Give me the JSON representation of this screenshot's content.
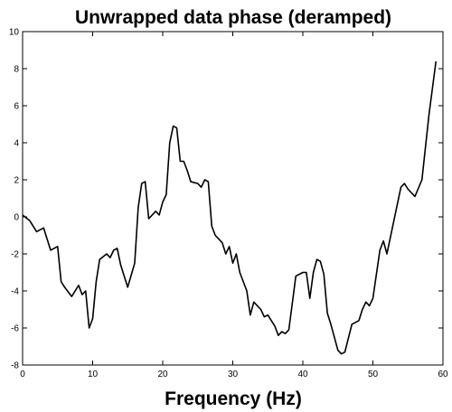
{
  "chart_data": {
    "type": "line",
    "title": "Unwrapped data phase (deramped)",
    "x_label": "Frequency (Hz)",
    "x": [
      0,
      1,
      2,
      3,
      4,
      5,
      5.5,
      6,
      7,
      8,
      8.5,
      9,
      9.5,
      10,
      10.5,
      11,
      12,
      12.5,
      13,
      13.5,
      14,
      15,
      16,
      16.5,
      17,
      17.5,
      18,
      19,
      19.5,
      20,
      20.5,
      21,
      21.5,
      22,
      22.5,
      23,
      23.5,
      24,
      25,
      25.5,
      26,
      26.5,
      27,
      27.5,
      28,
      28.5,
      29,
      29.5,
      30,
      30.5,
      31,
      31.5,
      32,
      32.5,
      33,
      34,
      34.5,
      35,
      36,
      36.5,
      37,
      37.5,
      38,
      39,
      40,
      40.5,
      41,
      41.5,
      42,
      42.5,
      43,
      43.5,
      44,
      45,
      45.5,
      46,
      47,
      48,
      48.5,
      49,
      49.5,
      50,
      51,
      51.5,
      52,
      53,
      54,
      54.5,
      55,
      56,
      57,
      58,
      59
    ],
    "series": [
      {
        "color": "#000000",
        "values": [
          0.1,
          -0.2,
          -0.8,
          -0.6,
          -1.8,
          -1.6,
          -3.5,
          -3.8,
          -4.3,
          -3.7,
          -4.2,
          -4.0,
          -6.0,
          -5.5,
          -3.5,
          -2.3,
          -2.0,
          -2.2,
          -1.8,
          -1.7,
          -2.6,
          -3.8,
          -2.5,
          0.5,
          1.8,
          1.9,
          -0.1,
          0.3,
          0.1,
          0.8,
          1.2,
          4.0,
          4.9,
          4.8,
          3.0,
          3.0,
          2.5,
          1.9,
          1.8,
          1.6,
          2.0,
          1.9,
          -0.5,
          -1.0,
          -1.2,
          -1.4,
          -2.0,
          -1.6,
          -2.5,
          -2.0,
          -3.0,
          -3.5,
          -4.0,
          -5.3,
          -4.6,
          -5.0,
          -5.4,
          -5.3,
          -5.9,
          -6.4,
          -6.2,
          -6.3,
          -6.1,
          -3.2,
          -3.0,
          -3.0,
          -4.4,
          -3.0,
          -2.3,
          -2.4,
          -3.1,
          -5.2,
          -5.8,
          -7.2,
          -7.4,
          -7.3,
          -5.8,
          -5.6,
          -5.0,
          -4.6,
          -4.8,
          -4.4,
          -1.8,
          -1.3,
          -2.0,
          -0.2,
          1.6,
          1.8,
          1.5,
          1.1,
          2.0,
          5.5,
          8.4
        ]
      }
    ],
    "xlim": [
      0,
      60
    ],
    "xticks": [
      0,
      10,
      20,
      30,
      40,
      50,
      60
    ],
    "ylim": [
      -8,
      10
    ],
    "yticks": [
      -8,
      -6,
      -4,
      -2,
      0,
      2,
      4,
      6,
      8,
      10
    ],
    "grid": false
  }
}
